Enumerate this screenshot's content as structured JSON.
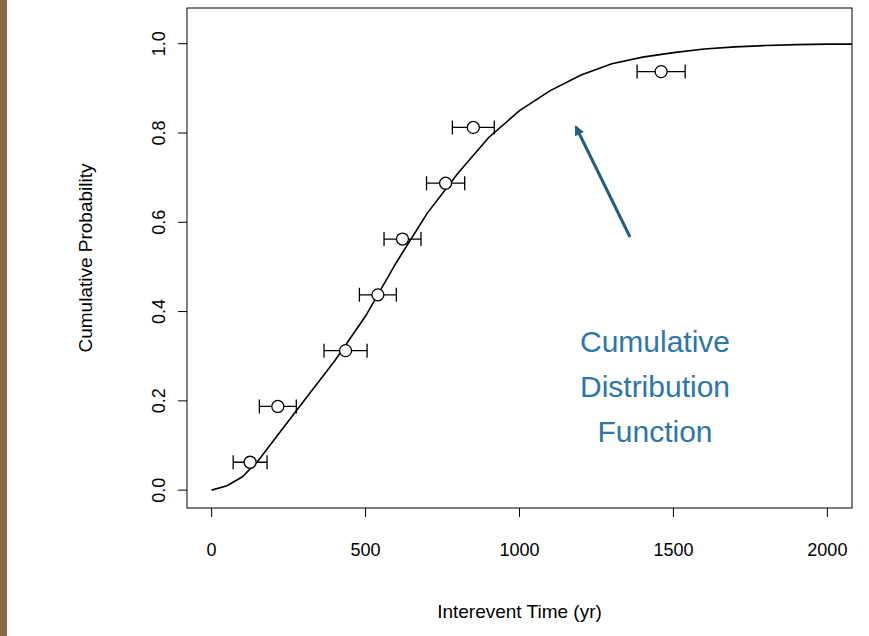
{
  "chart_data": {
    "type": "scatter",
    "x_label": "Interevent Time (yr)",
    "y_label": "Cumulative Probability",
    "xlim": [
      -80,
      2080
    ],
    "ylim": [
      -0.04,
      1.08
    ],
    "xticks": [
      0,
      500,
      1000,
      1500,
      2000
    ],
    "yticks": [
      {
        "value": 0,
        "label": "0.0"
      },
      {
        "value": 0.2,
        "label": "0.2"
      },
      {
        "value": 0.4,
        "label": "0.4"
      },
      {
        "value": 0.6,
        "label": "0.6"
      },
      {
        "value": 0.8,
        "label": "0.8"
      },
      {
        "value": 1,
        "label": "1.0"
      }
    ],
    "grid": false,
    "series": [
      {
        "type": "line",
        "color": "#000000",
        "line_style": "solid",
        "x": [
          0,
          50,
          100,
          150,
          200,
          300,
          400,
          500,
          600,
          700,
          800,
          900,
          1000,
          1100,
          1200,
          1300,
          1400,
          1500,
          1600,
          1700,
          1800,
          1900,
          2000,
          2080
        ],
        "values": [
          0,
          0.01,
          0.03,
          0.065,
          0.11,
          0.2,
          0.29,
          0.39,
          0.51,
          0.62,
          0.71,
          0.79,
          0.85,
          0.895,
          0.93,
          0.955,
          0.97,
          0.98,
          0.988,
          0.993,
          0.996,
          0.998,
          0.999,
          0.999
        ]
      },
      {
        "type": "scatter",
        "color": "#000000",
        "marker": "circle-open",
        "x": [
          125,
          215,
          435,
          540,
          620,
          760,
          850,
          1460
        ],
        "values": [
          0.0625,
          0.1875,
          0.3125,
          0.4375,
          0.5625,
          0.6875,
          0.8125,
          0.9375
        ],
        "x_err": [
          55,
          60,
          70,
          60,
          60,
          62,
          68,
          78
        ]
      }
    ],
    "annotation": {
      "text": "Cumulative Distribution Function",
      "color": "#2e75a8"
    }
  }
}
